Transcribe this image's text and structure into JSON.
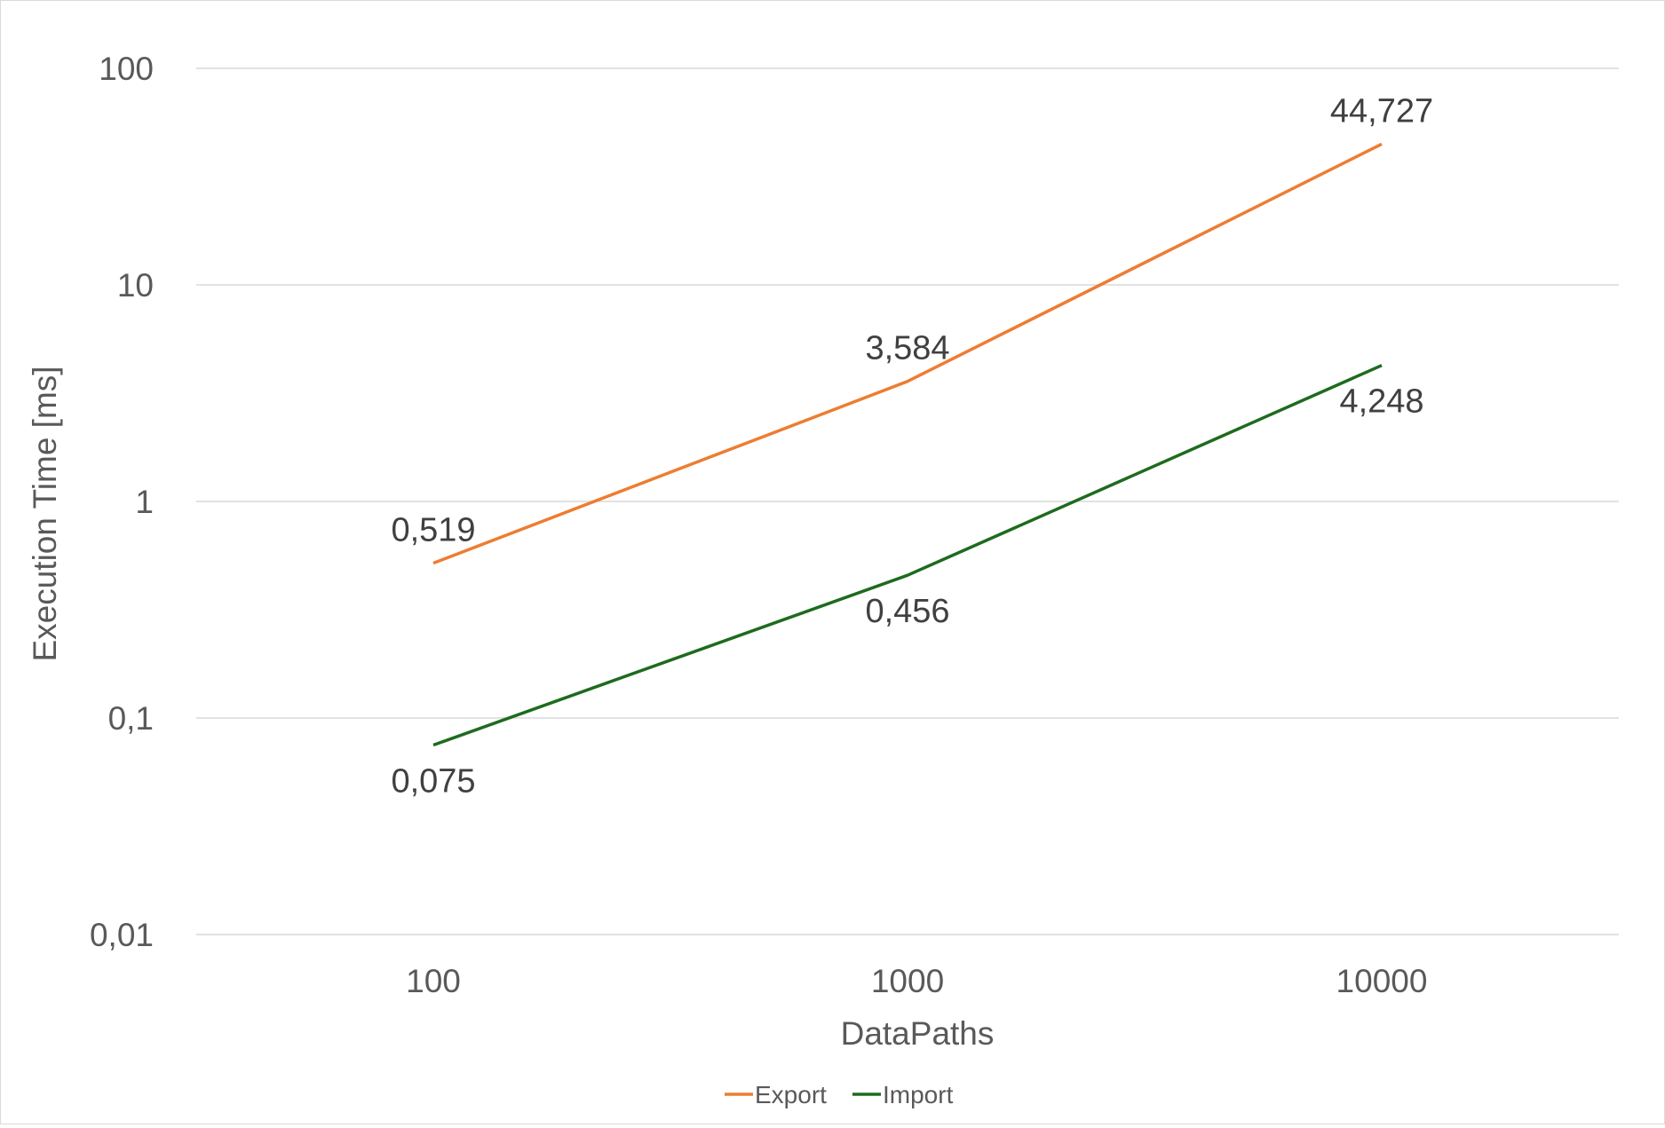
{
  "chart_data": {
    "type": "line",
    "title": "",
    "xlabel": "DataPaths",
    "ylabel": "Execution Time [ms]",
    "y_scale": "log",
    "ylim": [
      0.01,
      100
    ],
    "y_ticks": [
      {
        "value": 100,
        "label": "100"
      },
      {
        "value": 10,
        "label": "10"
      },
      {
        "value": 1,
        "label": "1"
      },
      {
        "value": 0.1,
        "label": "0,1"
      },
      {
        "value": 0.01,
        "label": "0,01"
      }
    ],
    "categories": [
      "100",
      "1000",
      "10000"
    ],
    "grid": true,
    "legend_position": "bottom",
    "series": [
      {
        "name": "Export",
        "color": "#ed7d31",
        "values": [
          0.519,
          3.584,
          44.727
        ],
        "labels": [
          "0,519",
          "3,584",
          "44,727"
        ],
        "label_position": "above"
      },
      {
        "name": "Import",
        "color": "#1e6b1e",
        "values": [
          0.075,
          0.456,
          4.248
        ],
        "labels": [
          "0,075",
          "0,456",
          "4,248"
        ],
        "label_position": "below"
      }
    ]
  }
}
